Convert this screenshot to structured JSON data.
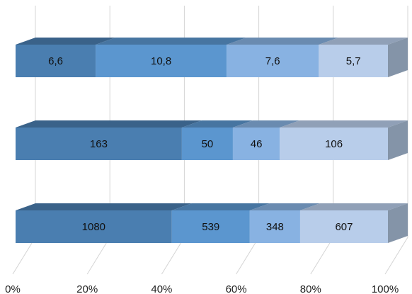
{
  "chart_data": {
    "type": "bar",
    "orientation": "horizontal",
    "stacking": "percent",
    "style": "3d",
    "grid": true,
    "legend": "none",
    "xlim": [
      0,
      100
    ],
    "x_ticks": [
      "0%",
      "20%",
      "40%",
      "60%",
      "80%",
      "100%"
    ],
    "categories": [
      "",
      "",
      ""
    ],
    "series": [
      {
        "values": [
          6.6,
          163,
          1080
        ],
        "labels": [
          "6,6",
          "163",
          "1080"
        ],
        "color": "#4a7eb0"
      },
      {
        "values": [
          10.8,
          50,
          539
        ],
        "labels": [
          "10,8",
          "50",
          "539"
        ],
        "color": "#5b96cf"
      },
      {
        "values": [
          7.6,
          46,
          348
        ],
        "labels": [
          "7,6",
          "46",
          "348"
        ],
        "color": "#88b2e2"
      },
      {
        "values": [
          5.7,
          106,
          607
        ],
        "labels": [
          "5,7",
          "106",
          "607"
        ],
        "color": "#b8cdea"
      }
    ]
  }
}
